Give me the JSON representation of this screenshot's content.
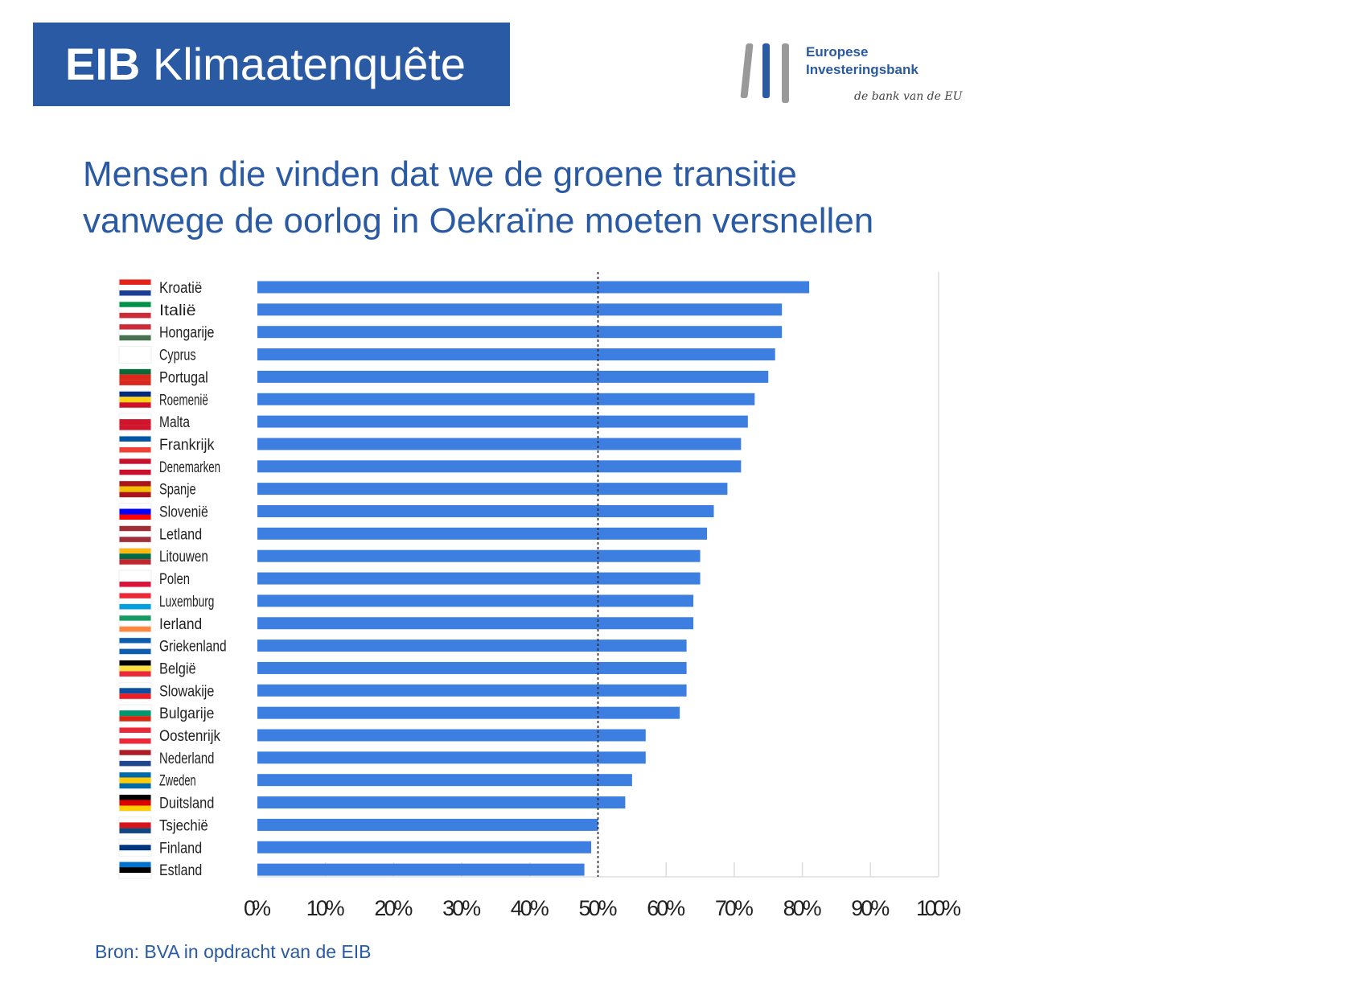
{
  "header": {
    "brand": "EIB",
    "title": "Klimaatenquête"
  },
  "logo": {
    "line1": "Europese",
    "line2": "Investeringsbank",
    "tagline": "de bank van de EU"
  },
  "chart_data": {
    "type": "bar",
    "orientation": "horizontal",
    "title": "Mensen die vinden dat we de groene transitie vanwege de oorlog in Oekraïne moeten versnellen",
    "title_lines": [
      "Mensen die vinden dat we de groene transitie",
      "vanwege de oorlog in Oekraïne moeten versnellen"
    ],
    "categories": [
      "Kroatië",
      "Italië",
      "Hongarije",
      "Cyprus",
      "Portugal",
      "Roemenië",
      "Malta",
      "Frankrijk",
      "Denemarken",
      "Spanje",
      "Slovenië",
      "Letland",
      "Litouwen",
      "Polen",
      "Luxemburg",
      "Ierland",
      "Griekenland",
      "België",
      "Slowakije",
      "Bulgarije",
      "Oostenrijk",
      "Nederland",
      "Zweden",
      "Duitsland",
      "Tsjechië",
      "Finland",
      "Estland"
    ],
    "values": [
      81,
      77,
      77,
      76,
      75,
      73,
      72,
      71,
      71,
      69,
      67,
      66,
      65,
      65,
      64,
      64,
      63,
      63,
      63,
      62,
      57,
      57,
      55,
      54,
      50,
      49,
      48
    ],
    "xlim": [
      0,
      100
    ],
    "xticks": [
      "0%",
      "10%",
      "20%",
      "30%",
      "40%",
      "50%",
      "60%",
      "70%",
      "80%",
      "90%",
      "100%"
    ],
    "reference_line": 50,
    "bar_color": "#3d7fe0",
    "grid": true,
    "source": "Bron: BVA in opdracht van de EIB"
  },
  "flags": [
    [
      "#e2231a",
      "#fff",
      "#1b3f95"
    ],
    [
      "#009246v",
      "#fff",
      "#ce2b37"
    ],
    [
      "#ce2939",
      "#fff",
      "#477050"
    ],
    [
      "#fff",
      "#fff",
      "#fff"
    ],
    [
      "#046a38",
      "#da291c",
      "#da291c"
    ],
    [
      "#002b7f",
      "#fcd116",
      "#ce1126"
    ],
    [
      "#fff",
      "#cf142b",
      "#cf142b"
    ],
    [
      "#0055a4",
      "#fff",
      "#ef4135"
    ],
    [
      "#c8102e",
      "#fff",
      "#c8102e"
    ],
    [
      "#aa151b",
      "#f1bf00",
      "#aa151b"
    ],
    [
      "#fff",
      "#0000ff",
      "#ff0000"
    ],
    [
      "#9e3039",
      "#fff",
      "#9e3039"
    ],
    [
      "#fdb913",
      "#006a44",
      "#c1272d"
    ],
    [
      "#fff",
      "#fff",
      "#dc143c"
    ],
    [
      "#ed2939",
      "#fff",
      "#00a1de"
    ],
    [
      "#169b62",
      "#fff",
      "#ff883e"
    ],
    [
      "#0d5eaf",
      "#fff",
      "#0d5eaf"
    ],
    [
      "#000",
      "#fae042",
      "#ed2939"
    ],
    [
      "#fff",
      "#0b4ea2",
      "#ee1c25"
    ],
    [
      "#fff",
      "#00966e",
      "#d62612"
    ],
    [
      "#ed2939",
      "#fff",
      "#ed2939"
    ],
    [
      "#ae1c28",
      "#fff",
      "#21468b"
    ],
    [
      "#006aa7",
      "#fecc00",
      "#006aa7"
    ],
    [
      "#000",
      "#dd0000",
      "#ffce00"
    ],
    [
      "#fff",
      "#d7141a",
      "#11457e"
    ],
    [
      "#fff",
      "#003580",
      "#fff"
    ],
    [
      "#0072ce",
      "#000",
      "#fff"
    ]
  ]
}
